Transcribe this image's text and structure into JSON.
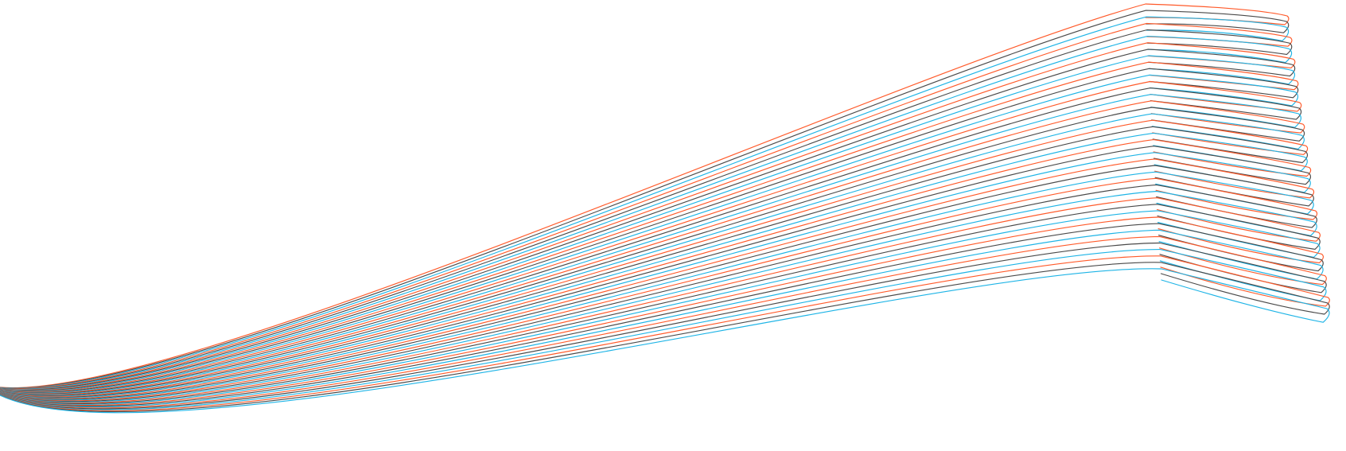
{
  "artwork": {
    "kind": "line-art",
    "description_visible_text": "",
    "loops": 14,
    "lines_per_loop": 3,
    "colors": {
      "background": "#ffffff",
      "warm": "#ff5a2a",
      "neutral": "#4a4a4a",
      "cool": "#1eb4e6"
    }
  }
}
